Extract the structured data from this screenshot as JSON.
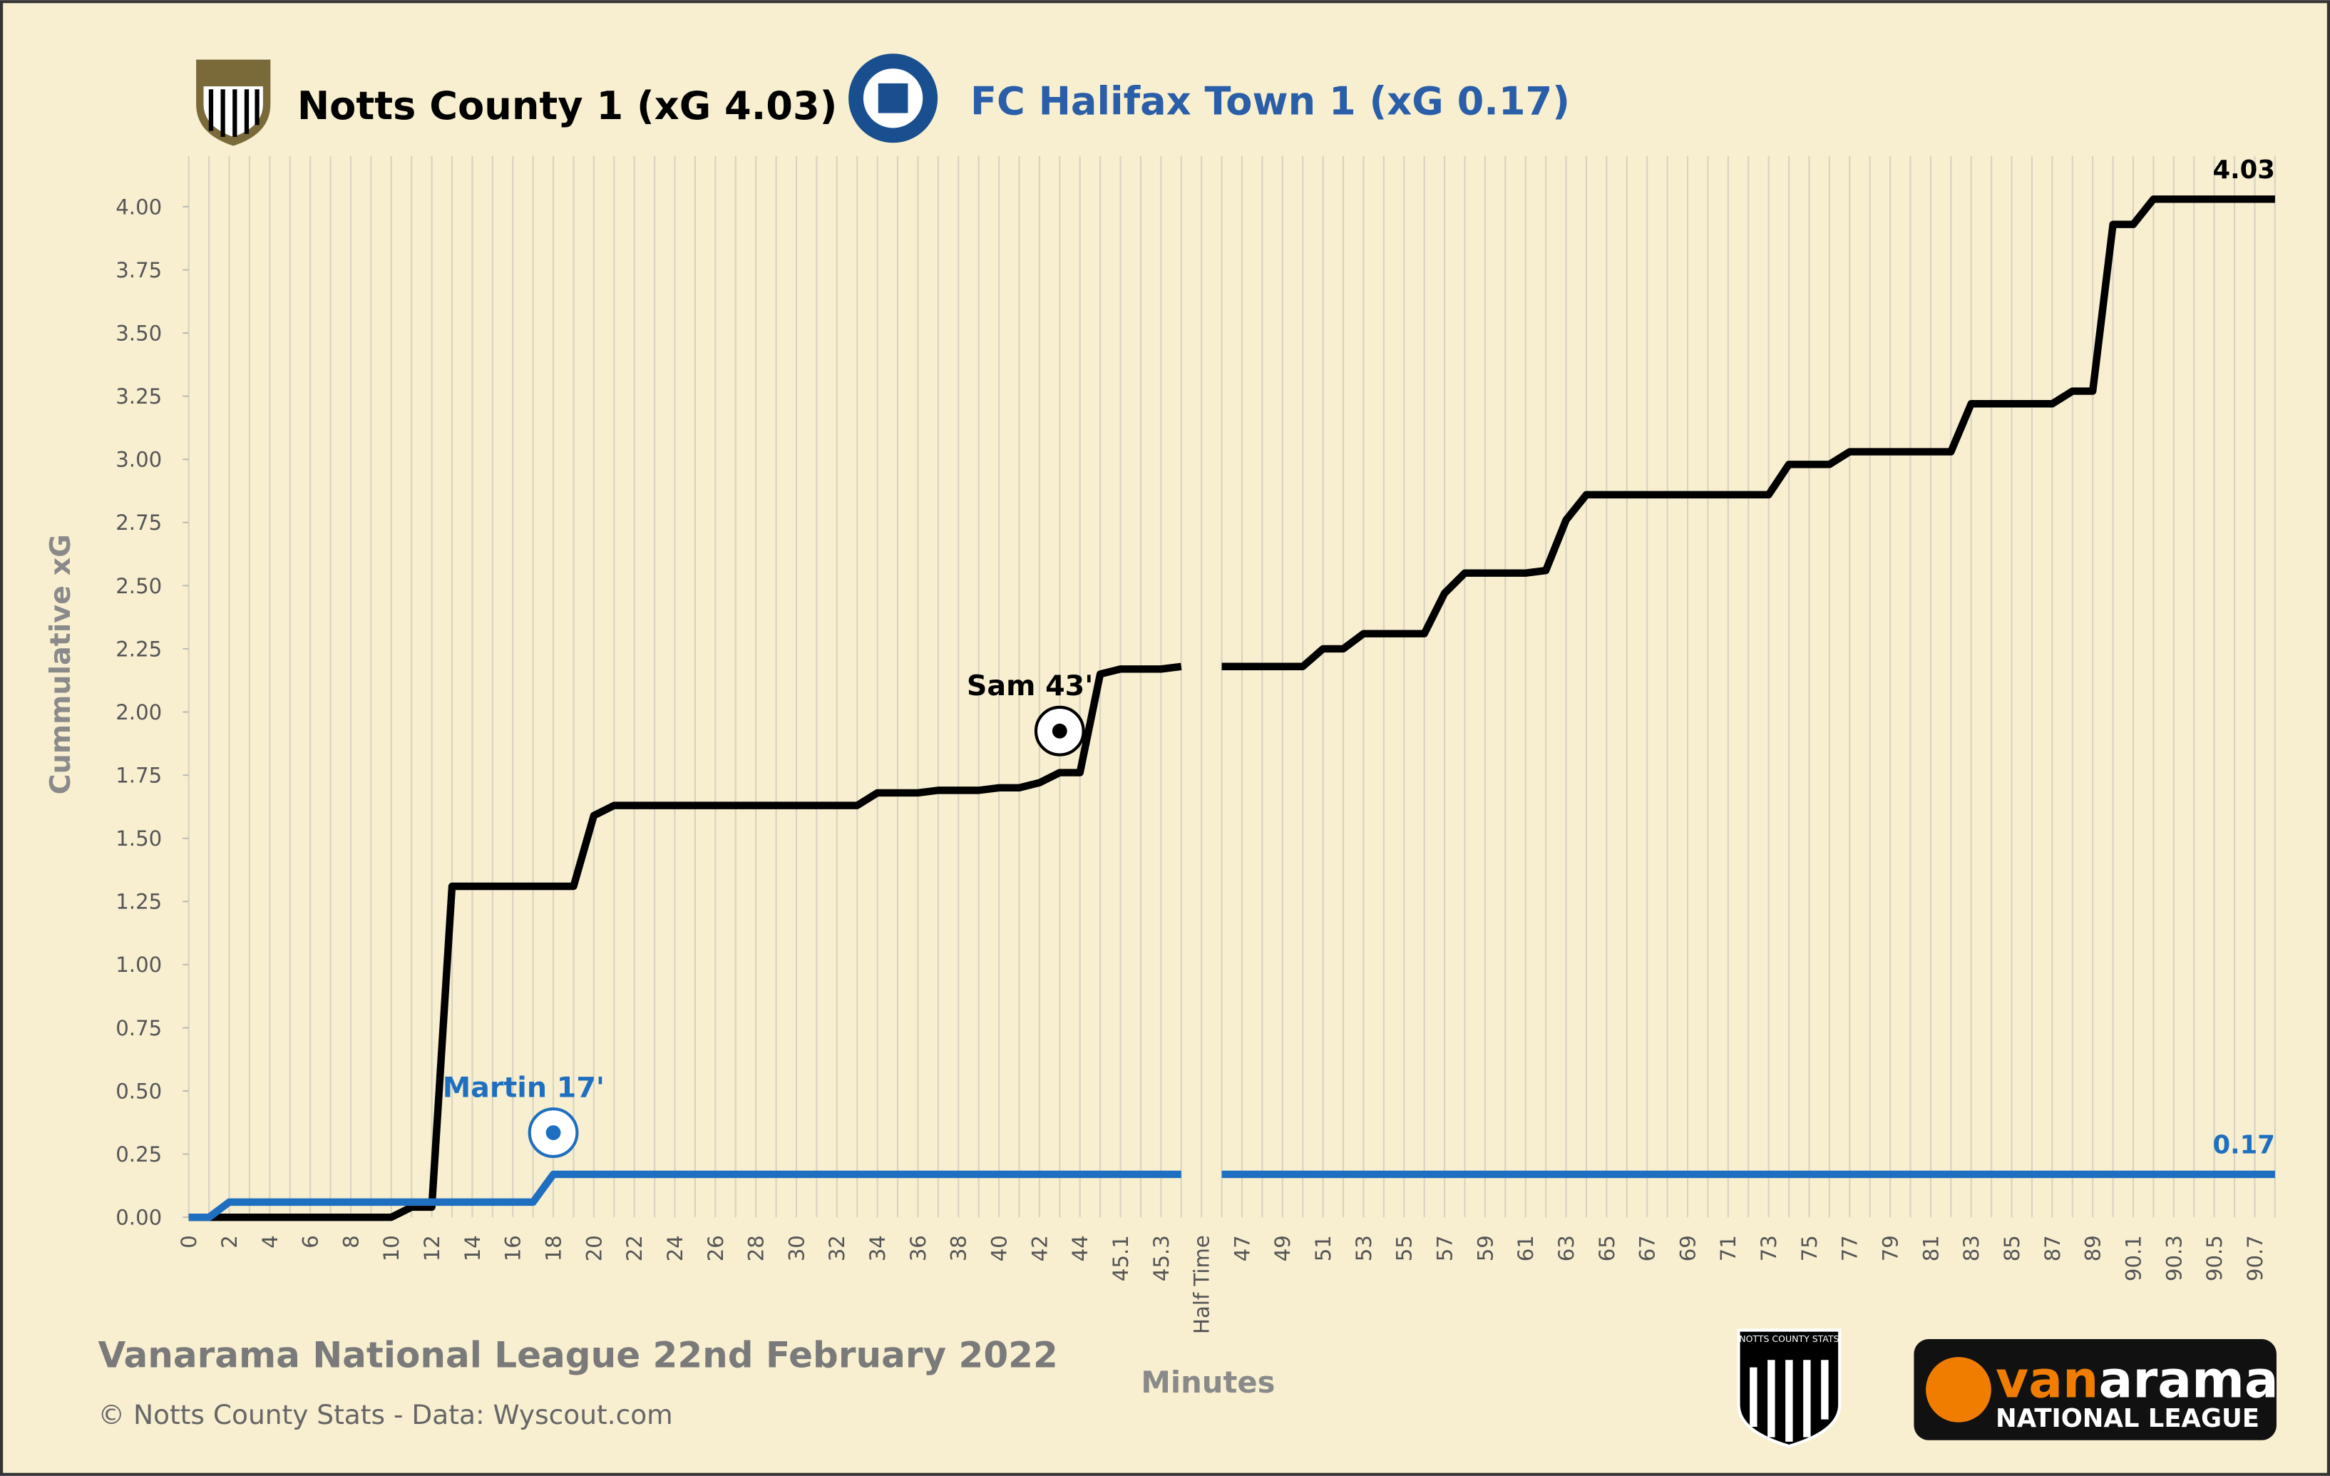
{
  "chart_data": {
    "type": "line",
    "team_titles": [
      "Notts County 1 (xG 4.03)",
      "FC Halifax Town 1 (xG 0.17)"
    ],
    "subtitle": "Vanarama National League 22nd February 2022",
    "credit": "© Notts County Stats - Data: Wyscout.com",
    "x_label": "Minutes",
    "y_label": "Cummulative  xG",
    "annotations": [
      "Sam 43'",
      "Martin 17'"
    ],
    "logos": {
      "sponsor": "van",
      "sponsor_rest": "arama",
      "sponsor_sub": "NATIONAL LEAGUE",
      "stats": "NOTTS COUNTY STATS"
    },
    "categories": [
      "0",
      null,
      "2",
      null,
      "4",
      null,
      "6",
      null,
      "8",
      null,
      "10",
      null,
      "12",
      null,
      "14",
      null,
      "16",
      null,
      "18",
      null,
      "20",
      null,
      "22",
      null,
      "24",
      null,
      "26",
      null,
      "28",
      null,
      "30",
      null,
      "32",
      null,
      "34",
      null,
      "36",
      null,
      "38",
      null,
      "40",
      null,
      "42",
      null,
      "44",
      null,
      "45.1",
      null,
      "45.3",
      null,
      "Half Time",
      null,
      "47",
      null,
      "49",
      null,
      "51",
      null,
      "53",
      null,
      "55",
      null,
      "57",
      null,
      "59",
      null,
      "61",
      null,
      "63",
      null,
      "65",
      null,
      "67",
      null,
      "69",
      null,
      "71",
      null,
      "73",
      null,
      "75",
      null,
      "77",
      null,
      "79",
      null,
      "81",
      null,
      "83",
      null,
      "85",
      null,
      "87",
      null,
      "89",
      null,
      "90.1",
      null,
      "90.3",
      null,
      "90.5",
      null,
      "90.7",
      null
    ],
    "series": [
      {
        "name": "Notts County",
        "color": "#000000",
        "values": [
          0,
          0,
          0,
          0,
          0,
          0,
          0,
          0,
          0,
          0,
          0,
          0.04,
          0.04,
          1.31,
          1.31,
          1.31,
          1.31,
          1.31,
          1.31,
          1.31,
          1.59,
          1.63,
          1.63,
          1.63,
          1.63,
          1.63,
          1.63,
          1.63,
          1.63,
          1.63,
          1.63,
          1.63,
          1.63,
          1.63,
          1.68,
          1.68,
          1.68,
          1.69,
          1.69,
          1.69,
          1.7,
          1.7,
          1.72,
          1.76,
          1.76,
          2.15,
          2.17,
          2.17,
          2.17,
          2.18,
          null,
          2.18,
          2.18,
          2.18,
          2.18,
          2.18,
          2.25,
          2.25,
          2.31,
          2.31,
          2.31,
          2.31,
          2.47,
          2.55,
          2.55,
          2.55,
          2.55,
          2.56,
          2.76,
          2.86,
          2.86,
          2.86,
          2.86,
          2.86,
          2.86,
          2.86,
          2.86,
          2.86,
          2.86,
          2.98,
          2.98,
          2.98,
          3.03,
          3.03,
          3.03,
          3.03,
          3.03,
          3.03,
          3.22,
          3.22,
          3.22,
          3.22,
          3.22,
          3.27,
          3.27,
          3.93,
          3.93,
          4.03,
          4.03,
          4.03,
          4.03,
          4.03,
          4.03,
          4.03
        ]
      },
      {
        "name": "FC Halifax Town",
        "color": "#1f6fc1",
        "values": [
          0,
          0,
          0.06,
          0.06,
          0.06,
          0.06,
          0.06,
          0.06,
          0.06,
          0.06,
          0.06,
          0.06,
          0.06,
          0.06,
          0.06,
          0.06,
          0.06,
          0.06,
          0.17,
          0.17,
          0.17,
          0.17,
          0.17,
          0.17,
          0.17,
          0.17,
          0.17,
          0.17,
          0.17,
          0.17,
          0.17,
          0.17,
          0.17,
          0.17,
          0.17,
          0.17,
          0.17,
          0.17,
          0.17,
          0.17,
          0.17,
          0.17,
          0.17,
          0.17,
          0.17,
          0.17,
          0.17,
          0.17,
          0.17,
          0.17,
          null,
          0.17,
          0.17,
          0.17,
          0.17,
          0.17,
          0.17,
          0.17,
          0.17,
          0.17,
          0.17,
          0.17,
          0.17,
          0.17,
          0.17,
          0.17,
          0.17,
          0.17,
          0.17,
          0.17,
          0.17,
          0.17,
          0.17,
          0.17,
          0.17,
          0.17,
          0.17,
          0.17,
          0.17,
          0.17,
          0.17,
          0.17,
          0.17,
          0.17,
          0.17,
          0.17,
          0.17,
          0.17,
          0.17,
          0.17,
          0.17,
          0.17,
          0.17,
          0.17,
          0.17,
          0.17,
          0.17,
          0.17,
          0.17,
          0.17,
          0.17,
          0.17,
          0.17,
          0.17
        ]
      }
    ],
    "ylim": [
      0,
      4.2
    ],
    "yticks": [
      {
        "value": 0,
        "label": "0.00"
      },
      {
        "value": 0.25,
        "label": "0.25"
      },
      {
        "value": 0.5,
        "label": "0.50"
      },
      {
        "value": 0.75,
        "label": "0.75"
      },
      {
        "value": 1,
        "label": "1.00"
      },
      {
        "value": 1.25,
        "label": "1.25"
      },
      {
        "value": 1.5,
        "label": "1.50"
      },
      {
        "value": 1.75,
        "label": "1.75"
      },
      {
        "value": 2,
        "label": "2.00"
      },
      {
        "value": 2.25,
        "label": "2.25"
      },
      {
        "value": 2.5,
        "label": "2.50"
      },
      {
        "value": 2.75,
        "label": "2.75"
      },
      {
        "value": 3,
        "label": "3.00"
      },
      {
        "value": 3.25,
        "label": "3.25"
      },
      {
        "value": 3.5,
        "label": "3.50"
      },
      {
        "value": 3.75,
        "label": "3.75"
      },
      {
        "value": 4,
        "label": "4.00"
      }
    ],
    "grid": true
  }
}
